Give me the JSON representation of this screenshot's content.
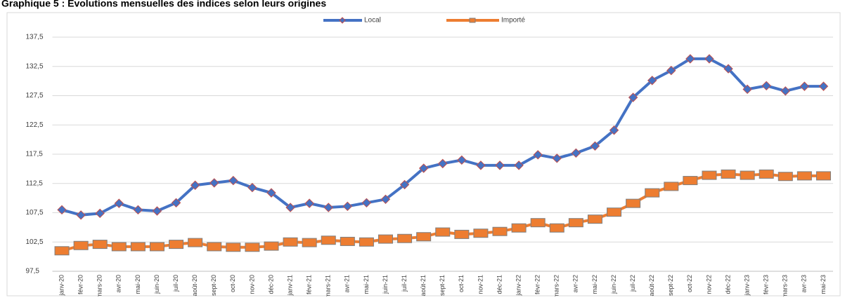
{
  "chart_data": {
    "type": "line",
    "title": "Graphique 5 : Evolutions mensuelles des indices selon leurs origines",
    "categories": [
      "janv-20",
      "févr-20",
      "mars-20",
      "avr-20",
      "mai-20",
      "juin-20",
      "juil-20",
      "août-20",
      "sept-20",
      "oct-20",
      "nov-20",
      "déc-20",
      "janv-21",
      "févr-21",
      "mars-21",
      "avr-21",
      "mai-21",
      "juin-21",
      "juil-21",
      "août-21",
      "sept-21",
      "oct-21",
      "nov-21",
      "déc-21",
      "janv-22",
      "févr-22",
      "mars-22",
      "avr-22",
      "mai-22",
      "juin-22",
      "juil-22",
      "août-22",
      "sept-22",
      "oct-22",
      "nov-22",
      "déc-22",
      "janv-23",
      "févr-23",
      "mars-23",
      "avr-23",
      "mai-23"
    ],
    "series": [
      {
        "name": "Local",
        "color": "#4472c4",
        "marker": "diamond",
        "values": [
          108.0,
          107.1,
          107.4,
          109.1,
          108.0,
          107.8,
          109.2,
          112.2,
          112.6,
          113.0,
          111.8,
          110.9,
          108.4,
          109.1,
          108.4,
          108.6,
          109.2,
          109.8,
          112.3,
          115.1,
          115.9,
          116.5,
          115.6,
          115.6,
          115.6,
          117.4,
          116.8,
          117.7,
          118.9,
          121.6,
          127.2,
          130.1,
          131.8,
          133.8,
          133.8,
          132.1,
          128.6,
          129.2,
          128.3,
          129.1,
          129.1
        ]
      },
      {
        "name": "Importé",
        "color": "#ed7d31",
        "marker": "square",
        "values": [
          101.0,
          101.9,
          102.1,
          101.7,
          101.7,
          101.7,
          102.1,
          102.4,
          101.7,
          101.6,
          101.6,
          101.8,
          102.5,
          102.4,
          102.8,
          102.6,
          102.5,
          103.0,
          103.1,
          103.4,
          104.2,
          103.8,
          104.0,
          104.3,
          104.9,
          105.8,
          104.9,
          105.8,
          106.4,
          107.6,
          109.1,
          110.9,
          112.0,
          113.0,
          113.9,
          114.1,
          113.9,
          114.1,
          113.7,
          113.8,
          113.8
        ]
      }
    ],
    "ylim": [
      97.5,
      137.5
    ],
    "yticks": [
      {
        "value": 97.5,
        "label": "97,5"
      },
      {
        "value": 102.5,
        "label": "102,5"
      },
      {
        "value": 107.5,
        "label": "107,5"
      },
      {
        "value": 112.5,
        "label": "112,5"
      },
      {
        "value": 117.5,
        "label": "117,5"
      },
      {
        "value": 122.5,
        "label": "122,5"
      },
      {
        "value": 127.5,
        "label": "127,5"
      },
      {
        "value": 132.5,
        "label": "132,5"
      },
      {
        "value": 137.5,
        "label": "137,5"
      }
    ],
    "grid": true,
    "legend": "top"
  }
}
